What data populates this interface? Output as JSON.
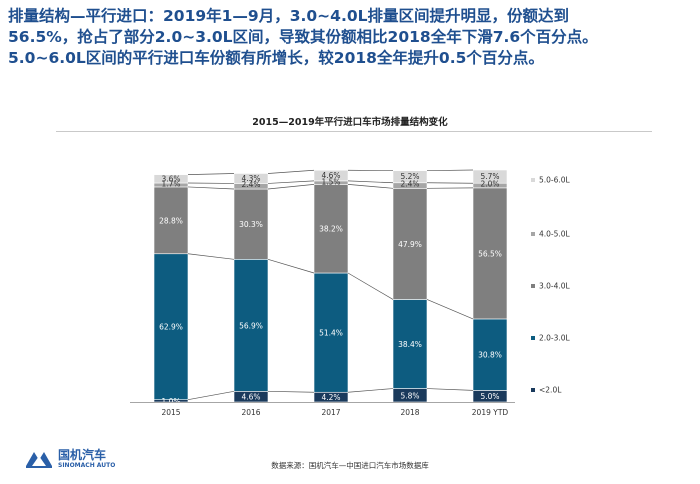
{
  "headline": {
    "line1": "排量结构—平行进口：2019年1—9月，3.0~4.0L排量区间提升明显，份额达到",
    "line2": "56.5%，抢占了部分2.0~3.0L区间，导致其份额相比2018全年下滑7.6个百分点。",
    "line3": "5.0~6.0L区间的平行进口车份额有所增长，较2018全年提升0.5个百分点。"
  },
  "source": "数据来源：国机汽车—中国进口汽车市场数据库",
  "logo": {
    "name": "国机汽车",
    "sub": "SINOMACH AUTO",
    "icon": "sinomach-logo-icon"
  },
  "colors": {
    "lt2": "#1a3a5c",
    "s2_3": "#0d5c80",
    "s3_4": "#7f7f7f",
    "s4_5": "#a6a6a6",
    "s5_6": "#d9d9d9",
    "heading": "#1f4f8f"
  },
  "chart_data": {
    "type": "bar",
    "stacked": true,
    "title": "2015—2019年平行进口车市场排量结构变化",
    "categories": [
      "2015",
      "2016",
      "2017",
      "2018",
      "2019 YTD"
    ],
    "series": [
      {
        "name": "<2.0L",
        "values": [
          1.0,
          4.6,
          4.2,
          5.8,
          5.0
        ],
        "labels": [
          "1.0%",
          "4.6%",
          "4.2%",
          "5.8%",
          "5.0%"
        ]
      },
      {
        "name": "2.0-3.0L",
        "values": [
          62.9,
          56.9,
          51.4,
          38.4,
          30.8
        ],
        "labels": [
          "62.9%",
          "56.9%",
          "51.4%",
          "38.4%",
          "30.8%"
        ]
      },
      {
        "name": "3.0-4.0L",
        "values": [
          28.8,
          30.3,
          38.2,
          47.9,
          56.5
        ],
        "labels": [
          "28.8%",
          "30.3%",
          "38.2%",
          "47.9%",
          "56.5%"
        ]
      },
      {
        "name": "4.0-5.0L",
        "values": [
          1.7,
          2.4,
          1.5,
          2.4,
          2.0
        ],
        "labels": [
          "1.7%",
          "2.4%",
          "1.5%",
          "2.4%",
          "2.0%"
        ]
      },
      {
        "name": "5.0-6.0L",
        "values": [
          3.6,
          4.3,
          4.6,
          5.2,
          5.7
        ],
        "labels": [
          "3.6%",
          "4.3%",
          "4.6%",
          "5.2%",
          "5.7%"
        ]
      }
    ],
    "ylim": [
      0,
      100
    ],
    "legend_position": "right",
    "grid": false,
    "connector_lines": true
  }
}
